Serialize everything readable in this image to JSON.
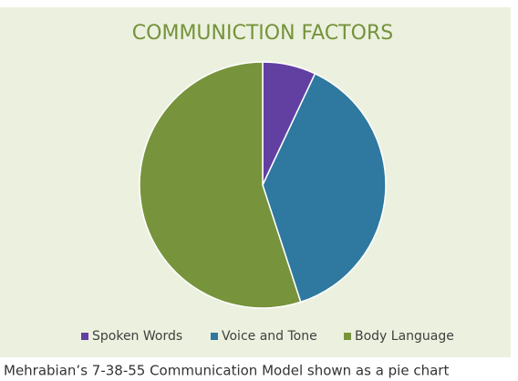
{
  "chart_data": {
    "type": "pie",
    "title": "COMMUNICTION FACTORS",
    "categories": [
      "Spoken Words",
      "Voice and Tone",
      "Body Language"
    ],
    "values": [
      7,
      38,
      55
    ],
    "colors": [
      "#6140a2",
      "#2f789f",
      "#77933c"
    ],
    "legend": "bottom"
  },
  "caption": "Mehrabian’s 7-38-55 Communication Model shown as a pie chart"
}
